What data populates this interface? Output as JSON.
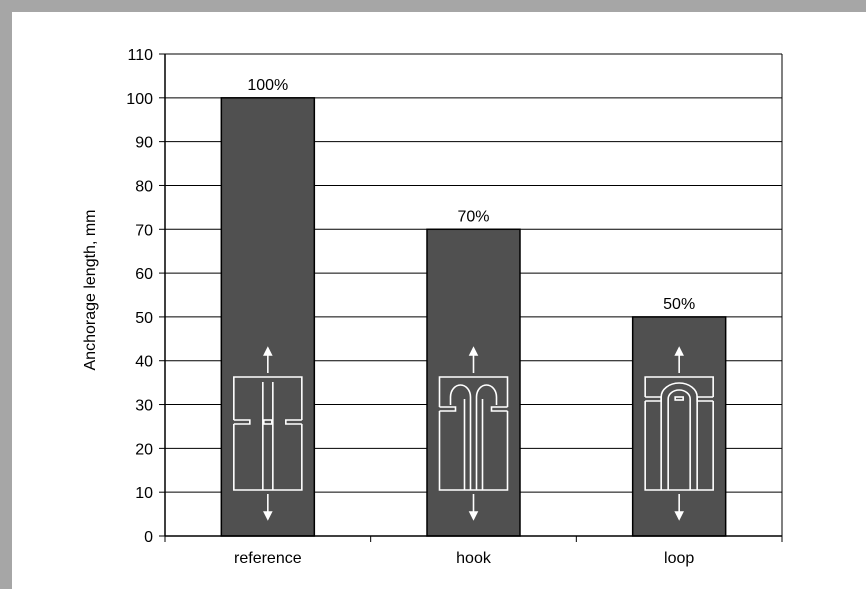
{
  "chart_data": {
    "type": "bar",
    "categories": [
      "reference",
      "hook",
      "loop"
    ],
    "values": [
      100,
      70,
      50
    ],
    "data_labels": [
      "100%",
      "70%",
      "50%"
    ],
    "ylabel": "Anchorage length, mm",
    "ylim": [
      0,
      110
    ],
    "yticks": [
      "0",
      "10",
      "20",
      "30",
      "40",
      "50",
      "60",
      "70",
      "80",
      "90",
      "100",
      "110"
    ],
    "grid": true,
    "bar_color": "#505050",
    "icons": [
      "reference-anchorage-icon",
      "hook-anchorage-icon",
      "loop-anchorage-icon"
    ]
  }
}
